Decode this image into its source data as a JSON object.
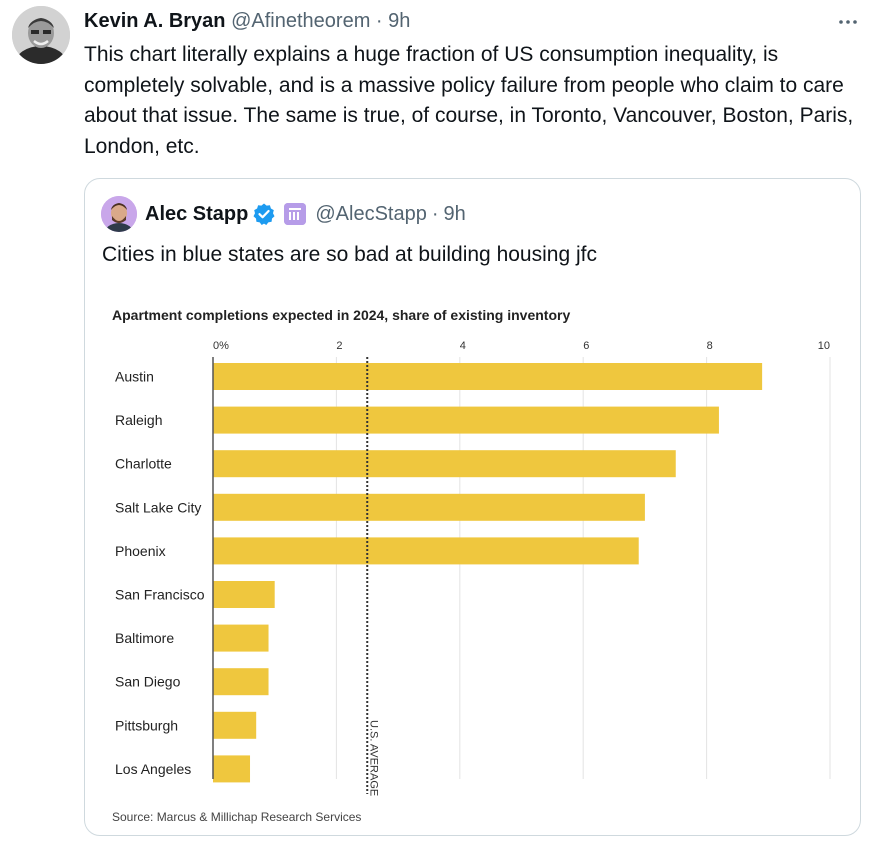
{
  "tweet": {
    "author_name": "Kevin A. Bryan",
    "author_handle": "@Afinetheorem",
    "separator": "·",
    "time": "9h",
    "more_icon": "more-horizontal-icon",
    "text": "This chart literally explains a huge fraction of US consumption inequality, is completely solvable, and is a massive policy failure from people who claim to care about that issue. The same is true, of course, in Toronto, Vancouver, Boston, Paris, London, etc."
  },
  "quote": {
    "author_name": "Alec Stapp",
    "author_handle": "@AlecStapp",
    "separator": "·",
    "time": "9h",
    "verified_color": "#1d9bf0",
    "text": "Cities in blue states are so bad at building housing jfc"
  },
  "chart_data": {
    "type": "bar",
    "orientation": "horizontal",
    "title": "Apartment completions expected in 2024, share of existing inventory",
    "categories": [
      "Austin",
      "Raleigh",
      "Charlotte",
      "Salt Lake City",
      "Phoenix",
      "San Francisco",
      "Baltimore",
      "San Diego",
      "Pittsburgh",
      "Los Angeles"
    ],
    "values": [
      8.9,
      8.2,
      7.5,
      7.0,
      6.9,
      1.0,
      0.9,
      0.9,
      0.7,
      0.6
    ],
    "xlim": [
      0,
      10
    ],
    "x_ticks": [
      0,
      2,
      4,
      6,
      8,
      10
    ],
    "x_tick_labels": [
      "0%",
      "2",
      "4",
      "6",
      "8",
      "10"
    ],
    "reference_line": {
      "value": 2.5,
      "label": "U.S. AVERAGE"
    },
    "bar_color": "#efc73e",
    "grid": true,
    "source": "Source: Marcus & Millichap Research Services"
  }
}
